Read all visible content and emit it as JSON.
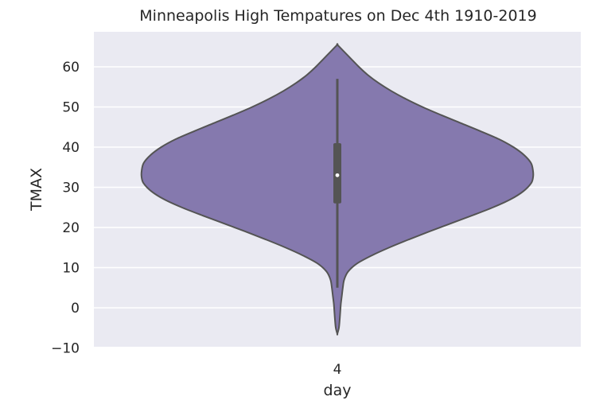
{
  "chart_data": {
    "type": "violin",
    "title": "Minneapolis High Tempatures on Dec 4th 1910-2019",
    "xlabel": "day",
    "ylabel": "TMAX",
    "categories": [
      "4"
    ],
    "ylim": [
      -10,
      68
    ],
    "yticks": [
      -10,
      0,
      10,
      20,
      30,
      40,
      50,
      60
    ],
    "ytick_labels": [
      "−10",
      "0",
      "10",
      "20",
      "30",
      "40",
      "50",
      "60"
    ],
    "grid": true,
    "summary": {
      "median": 33,
      "q1": 26,
      "q3": 41,
      "whisker_low": 5,
      "whisker_high": 57,
      "kde_min": -6.5,
      "kde_max": 65.5
    },
    "density_profile": [
      [
        65.5,
        0.0
      ],
      [
        64,
        0.03
      ],
      [
        62,
        0.07
      ],
      [
        60,
        0.11
      ],
      [
        58,
        0.155
      ],
      [
        56,
        0.21
      ],
      [
        54,
        0.275
      ],
      [
        52,
        0.35
      ],
      [
        50,
        0.435
      ],
      [
        48,
        0.53
      ],
      [
        46,
        0.63
      ],
      [
        44,
        0.73
      ],
      [
        42,
        0.825
      ],
      [
        40,
        0.9
      ],
      [
        38,
        0.955
      ],
      [
        36,
        0.99
      ],
      [
        34,
        1.0
      ],
      [
        32.5,
        1.0
      ],
      [
        31,
        0.99
      ],
      [
        29,
        0.95
      ],
      [
        27,
        0.885
      ],
      [
        25,
        0.795
      ],
      [
        23,
        0.69
      ],
      [
        21,
        0.58
      ],
      [
        19,
        0.47
      ],
      [
        17,
        0.365
      ],
      [
        15,
        0.265
      ],
      [
        13,
        0.175
      ],
      [
        11,
        0.1
      ],
      [
        9,
        0.055
      ],
      [
        7,
        0.035
      ],
      [
        5,
        0.028
      ],
      [
        3,
        0.023
      ],
      [
        1,
        0.018
      ],
      [
        -1,
        0.015
      ],
      [
        -3,
        0.012
      ],
      [
        -5,
        0.008
      ],
      [
        -6.5,
        0.0
      ]
    ],
    "colors": {
      "violin_fill": "#8579ae",
      "violin_edge": "#545454",
      "box": "#545454",
      "median_dot": "#ffffff",
      "plot_bg": "#eaeaf2",
      "grid": "#ffffff"
    }
  }
}
